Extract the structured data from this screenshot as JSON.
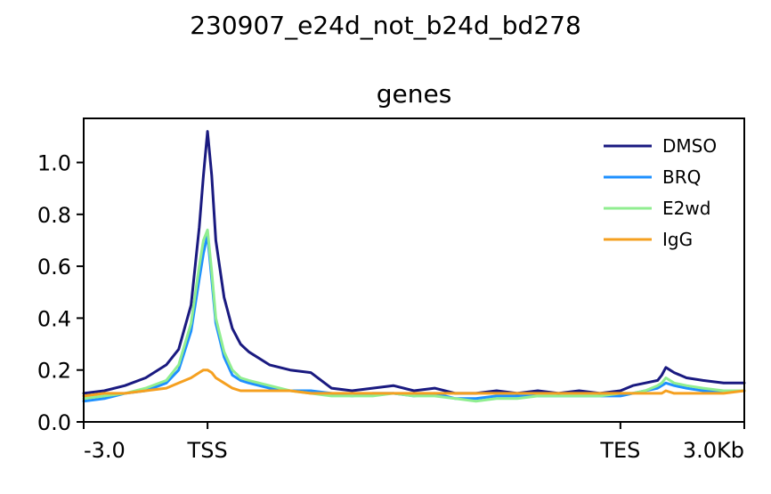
{
  "suptitle": "230907_e24d_not_b24d_bd278",
  "chart_data": {
    "type": "line",
    "title": "genes",
    "xlabel": "",
    "ylabel": "",
    "x_tick_labels": [
      "-3.0",
      "TSS",
      "TES",
      "3.0Kb"
    ],
    "x_tick_positions": [
      0,
      3.0,
      13.0,
      16.0
    ],
    "xlim": [
      0,
      16.0
    ],
    "ylim": [
      0,
      1.17
    ],
    "y_ticks": [
      0.0,
      0.2,
      0.4,
      0.6,
      0.8,
      1.0
    ],
    "y_tick_labels": [
      "0.0",
      "0.2",
      "0.4",
      "0.6",
      "0.8",
      "1.0"
    ],
    "grid": false,
    "legend_position": "top-right",
    "x": [
      0,
      0.5,
      1.0,
      1.5,
      2.0,
      2.3,
      2.6,
      2.8,
      2.9,
      3.0,
      3.1,
      3.2,
      3.4,
      3.6,
      3.8,
      4.0,
      4.5,
      5.0,
      5.5,
      6.0,
      6.5,
      7.0,
      7.5,
      8.0,
      8.5,
      9.0,
      9.5,
      10.0,
      10.5,
      11.0,
      11.5,
      12.0,
      12.5,
      13.0,
      13.3,
      13.6,
      13.9,
      14.0,
      14.1,
      14.3,
      14.6,
      15.0,
      15.5,
      16.0
    ],
    "series": [
      {
        "name": "DMSO",
        "color": "#1a1a80",
        "values": [
          0.11,
          0.12,
          0.14,
          0.17,
          0.22,
          0.28,
          0.45,
          0.75,
          0.95,
          1.12,
          0.95,
          0.7,
          0.48,
          0.36,
          0.3,
          0.27,
          0.22,
          0.2,
          0.19,
          0.13,
          0.12,
          0.13,
          0.14,
          0.12,
          0.13,
          0.11,
          0.11,
          0.12,
          0.11,
          0.12,
          0.11,
          0.12,
          0.11,
          0.12,
          0.14,
          0.15,
          0.16,
          0.18,
          0.21,
          0.19,
          0.17,
          0.16,
          0.15,
          0.15
        ]
      },
      {
        "name": "BRQ",
        "color": "#1e90ff",
        "values": [
          0.08,
          0.09,
          0.11,
          0.12,
          0.15,
          0.2,
          0.35,
          0.55,
          0.65,
          0.72,
          0.55,
          0.38,
          0.25,
          0.18,
          0.16,
          0.15,
          0.13,
          0.12,
          0.12,
          0.11,
          0.1,
          0.11,
          0.11,
          0.1,
          0.11,
          0.09,
          0.09,
          0.1,
          0.1,
          0.1,
          0.1,
          0.1,
          0.1,
          0.1,
          0.11,
          0.12,
          0.13,
          0.14,
          0.15,
          0.14,
          0.13,
          0.12,
          0.12,
          0.12
        ]
      },
      {
        "name": "E2wd",
        "color": "#90ee90",
        "values": [
          0.09,
          0.1,
          0.11,
          0.13,
          0.16,
          0.22,
          0.38,
          0.6,
          0.7,
          0.74,
          0.58,
          0.4,
          0.27,
          0.2,
          0.17,
          0.16,
          0.14,
          0.12,
          0.11,
          0.1,
          0.1,
          0.1,
          0.11,
          0.1,
          0.1,
          0.09,
          0.08,
          0.09,
          0.09,
          0.1,
          0.1,
          0.1,
          0.1,
          0.11,
          0.11,
          0.12,
          0.14,
          0.15,
          0.17,
          0.15,
          0.14,
          0.13,
          0.12,
          0.12
        ]
      },
      {
        "name": "IgG",
        "color": "#f5a020",
        "values": [
          0.1,
          0.11,
          0.11,
          0.12,
          0.13,
          0.15,
          0.17,
          0.19,
          0.2,
          0.2,
          0.19,
          0.17,
          0.15,
          0.13,
          0.12,
          0.12,
          0.12,
          0.12,
          0.11,
          0.11,
          0.11,
          0.11,
          0.11,
          0.11,
          0.11,
          0.11,
          0.11,
          0.11,
          0.11,
          0.11,
          0.11,
          0.11,
          0.11,
          0.11,
          0.11,
          0.11,
          0.11,
          0.11,
          0.12,
          0.11,
          0.11,
          0.11,
          0.11,
          0.12
        ]
      }
    ]
  }
}
